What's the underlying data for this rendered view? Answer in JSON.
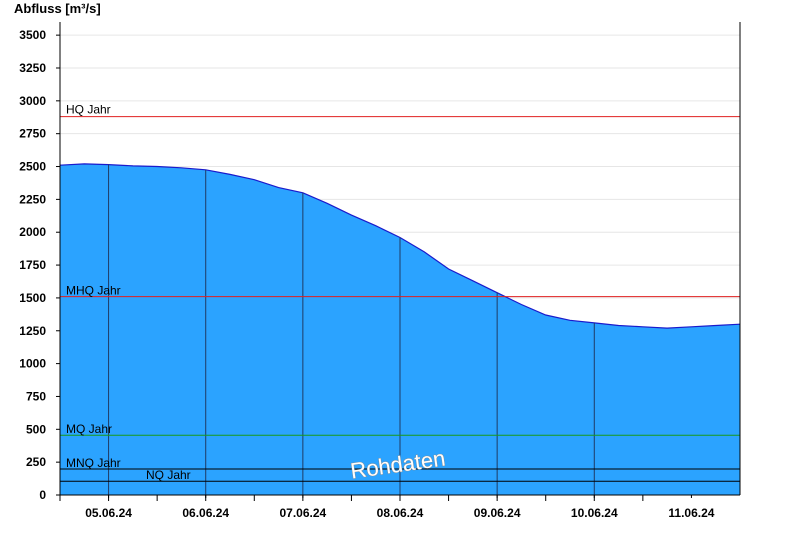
{
  "chart_data": {
    "type": "area",
    "ylabel": "Abfluss [m³/s]",
    "ylim": [
      0,
      3600
    ],
    "yticks": [
      0,
      250,
      500,
      750,
      1000,
      1250,
      1500,
      1750,
      2000,
      2250,
      2500,
      2750,
      3000,
      3250,
      3500
    ],
    "xlim": [
      "04.06.24 12:00",
      "11.06.24 12:00"
    ],
    "xticks": [
      "05.06.24",
      "06.06.24",
      "07.06.24",
      "08.06.24",
      "09.06.24",
      "10.06.24",
      "11.06.24"
    ],
    "grid": true,
    "fill_color": "#2ba3ff",
    "line_color": "#1a1acc",
    "series": [
      {
        "x": [
          0,
          0.25,
          0.5,
          0.75,
          1.0,
          1.25,
          1.5,
          1.75,
          2.0,
          2.25,
          2.5,
          2.75,
          3.0,
          3.25,
          3.5,
          3.75,
          4.0,
          4.25,
          4.5,
          4.75,
          5.0,
          5.25,
          5.5,
          5.75,
          6.0,
          6.25,
          6.5,
          6.75,
          7.0
        ],
        "x_note_unused": null,
        "values": [
          2510,
          2520,
          2515,
          2505,
          2500,
          2490,
          2475,
          2440,
          2400,
          2340,
          2300,
          2220,
          2130,
          2050,
          1960,
          1850,
          1720,
          1630,
          1540,
          1450,
          1370,
          1330,
          1310,
          1290,
          1280,
          1270,
          1280,
          1290,
          1300
        ]
      }
    ],
    "reference_lines": [
      {
        "label": "HQ Jahr",
        "value": 2880,
        "color": "#e02020"
      },
      {
        "label": "MHQ Jahr",
        "value": 1510,
        "color": "#e02020"
      },
      {
        "label": "MQ Jahr",
        "value": 455,
        "color": "#1a9a1a"
      },
      {
        "label": "MNQ Jahr",
        "value": 198,
        "color": "#000000"
      },
      {
        "label": "NQ Jahr",
        "value": 105,
        "color": "#000000"
      }
    ],
    "watermark": "Rohdaten"
  }
}
